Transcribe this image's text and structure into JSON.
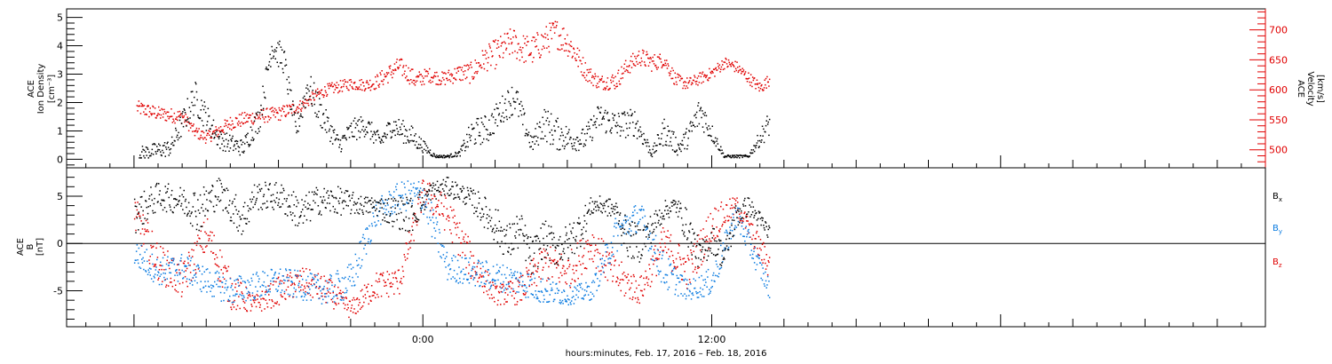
{
  "chart_data": [
    {
      "type": "scatter",
      "title": "",
      "ylabel_lines": [
        "ACE",
        "Ion Density"
      ],
      "ylabel_unit": "[cm⁻³]",
      "ylim": [
        -0.3,
        5.3
      ],
      "y_ticks": [
        "0",
        "1",
        "2",
        "3",
        "4",
        "5"
      ],
      "y2label_lines": [
        "ACE",
        "Velocity"
      ],
      "y2label_unit": "[km/s]",
      "y2lim": [
        470,
        735
      ],
      "y2_ticks": [
        "500",
        "550",
        "600",
        "650",
        "700"
      ],
      "series": [
        {
          "color": "#000000",
          "axis": "left",
          "x": [
            -11.8,
            -10.5,
            -9.5,
            -8.5,
            -7.5,
            -6.8,
            -6.3,
            -5.8,
            -5.3,
            -4.8,
            -4.2,
            -3.5,
            -3.0,
            -2.4,
            -1.8,
            -1.3,
            -0.5,
            0.5,
            1.0,
            1.5,
            2.0,
            2.7,
            3.3,
            3.8,
            4.5,
            5.0,
            5.5,
            6.2,
            6.7,
            7.3,
            8.0,
            8.8,
            9.5,
            10.0,
            10.6,
            11.0,
            11.5,
            12.5,
            13.5,
            14.4
          ],
          "y": [
            0.2,
            0.4,
            2.2,
            0.7,
            0.4,
            1.5,
            4.0,
            3.5,
            1.0,
            2.6,
            1.5,
            0.5,
            1.0,
            1.2,
            0.6,
            1.2,
            0.8,
            0.1,
            0.1,
            0.2,
            0.9,
            1.1,
            1.8,
            2.2,
            0.5,
            1.3,
            0.9,
            0.7,
            0.7,
            1.5,
            1.2,
            1.3,
            0.2,
            1.0,
            0.4,
            0.8,
            1.7,
            0.1,
            0.1,
            1.3
          ],
          "spread": [
            0.25,
            0.3,
            0.6,
            0.35,
            0.3,
            0.5,
            0.5,
            0.5,
            0.4,
            0.6,
            0.5,
            0.3,
            0.4,
            0.4,
            0.3,
            0.4,
            0.4,
            0.05,
            0.05,
            0.1,
            0.5,
            0.5,
            0.5,
            0.6,
            0.3,
            0.6,
            0.6,
            0.4,
            0.4,
            0.5,
            0.5,
            0.5,
            0.15,
            0.5,
            0.3,
            0.4,
            0.6,
            0.05,
            0.05,
            0.5
          ]
        },
        {
          "color": "#e00000",
          "axis": "right",
          "x": [
            -11.9,
            -11.0,
            -10.0,
            -9.5,
            -9.0,
            -8.0,
            -7.0,
            -6.0,
            -5.0,
            -4.5,
            -4.0,
            -3.0,
            -2.4,
            -2.0,
            -1.5,
            -1.0,
            -0.3,
            0.2,
            0.8,
            1.5,
            2.0,
            2.5,
            3.0,
            3.7,
            4.0,
            4.5,
            5.0,
            5.5,
            6.0,
            6.8,
            7.3,
            8.0,
            8.5,
            9.0,
            9.5,
            10.0,
            10.5,
            11.0,
            12.0,
            12.5,
            13.0,
            13.5,
            14.0,
            14.4
          ],
          "y": [
            570,
            560,
            555,
            530,
            520,
            545,
            555,
            560,
            575,
            590,
            600,
            610,
            608,
            612,
            625,
            640,
            615,
            625,
            618,
            628,
            628,
            650,
            660,
            680,
            670,
            665,
            680,
            695,
            680,
            628,
            612,
            615,
            640,
            655,
            645,
            650,
            615,
            610,
            628,
            645,
            638,
            620,
            603,
            618
          ],
          "spread": [
            12,
            12,
            12,
            10,
            10,
            12,
            12,
            12,
            10,
            10,
            10,
            10,
            10,
            12,
            15,
            15,
            15,
            12,
            12,
            15,
            18,
            20,
            25,
            25,
            25,
            25,
            25,
            25,
            25,
            15,
            12,
            15,
            15,
            15,
            15,
            12,
            12,
            10,
            10,
            10,
            10,
            10,
            10,
            10
          ]
        }
      ]
    },
    {
      "type": "scatter",
      "title": "",
      "ylabel_lines": [
        "ACE",
        "B"
      ],
      "ylabel_unit": "[nT]",
      "ylim": [
        -8.8,
        8.0
      ],
      "y_ticks": [
        "-5",
        "0",
        "5"
      ],
      "zero_line": true,
      "legend_position": "right",
      "series": [
        {
          "name": "B",
          "subscript": "x",
          "color": "#000000",
          "x": [
            -12.0,
            -11.0,
            -10.0,
            -9.3,
            -8.5,
            -7.5,
            -7.0,
            -6.0,
            -5.0,
            -4.5,
            -3.5,
            -2.5,
            -2.0,
            -1.5,
            -0.5,
            0.3,
            1.0,
            1.8,
            2.3,
            3.0,
            3.5,
            4.0,
            4.5,
            5.0,
            5.5,
            6.0,
            6.5,
            7.0,
            7.5,
            8.0,
            8.5,
            9.0,
            10.0,
            10.5,
            11.0,
            11.5,
            12.0,
            12.5,
            13.0,
            13.5,
            14.4
          ],
          "y": [
            3.0,
            5.0,
            4.5,
            3.5,
            5.5,
            2.5,
            5.0,
            5.0,
            3.0,
            4.5,
            4.5,
            4.0,
            4.0,
            3.5,
            3.0,
            5.5,
            6.0,
            5.0,
            4.0,
            2.0,
            0.0,
            1.5,
            -1.5,
            0.5,
            -0.5,
            0.0,
            1.5,
            4.0,
            4.0,
            3.5,
            0.5,
            0.0,
            3.5,
            4.0,
            1.5,
            -1.5,
            0.5,
            -1.5,
            3.0,
            4.0,
            1.0
          ],
          "spread": [
            2.0,
            1.5,
            1.5,
            2.5,
            1.5,
            2.0,
            1.5,
            1.5,
            2.0,
            1.5,
            1.5,
            1.0,
            1.0,
            1.5,
            2.0,
            1.0,
            1.0,
            1.0,
            1.5,
            2.0,
            2.0,
            2.0,
            2.0,
            2.0,
            2.0,
            2.0,
            2.0,
            1.0,
            1.0,
            1.0,
            2.0,
            2.0,
            1.0,
            1.0,
            2.0,
            1.5,
            1.5,
            1.5,
            1.5,
            1.0,
            1.0
          ]
        },
        {
          "name": "B",
          "subscript": "y",
          "color": "#0a7be0",
          "x": [
            -12.0,
            -11.0,
            -10.0,
            -9.0,
            -8.0,
            -7.0,
            -6.0,
            -5.0,
            -4.0,
            -3.0,
            -2.0,
            -1.0,
            0.0,
            1.0,
            2.0,
            3.0,
            4.0,
            5.0,
            6.0,
            7.0,
            8.0,
            9.0,
            10.0,
            11.0,
            12.0,
            13.0,
            14.4
          ],
          "y": [
            -1.0,
            -3.0,
            -2.5,
            -4.0,
            -5.0,
            -4.5,
            -4.0,
            -4.5,
            -5.0,
            -4.0,
            3.0,
            5.0,
            5.0,
            -2.5,
            -3.0,
            -3.5,
            -4.0,
            -5.0,
            -5.5,
            -5.0,
            1.0,
            3.0,
            -3.0,
            -5.0,
            -4.0,
            3.0,
            -5.0
          ],
          "spread": [
            1.5,
            1.5,
            1.5,
            1.5,
            1.5,
            1.5,
            1.5,
            1.5,
            1.5,
            2.0,
            1.5,
            1.5,
            2.0,
            1.5,
            1.5,
            1.5,
            1.5,
            1.5,
            1.0,
            1.0,
            2.0,
            1.5,
            2.0,
            1.0,
            1.5,
            1.5,
            1.0
          ]
        },
        {
          "name": "B",
          "subscript": "z",
          "color": "#e00000",
          "x": [
            -12.0,
            -11.0,
            -10.0,
            -9.0,
            -8.0,
            -7.0,
            -6.0,
            -5.0,
            -4.0,
            -3.0,
            -2.0,
            -1.0,
            0.0,
            1.0,
            2.0,
            3.0,
            4.0,
            5.0,
            6.0,
            7.0,
            8.0,
            9.0,
            10.0,
            11.0,
            12.0,
            13.0,
            14.4
          ],
          "y": [
            3.0,
            -2.0,
            -4.0,
            1.0,
            -5.0,
            -6.5,
            -5.0,
            -4.0,
            -5.0,
            -7.0,
            -4.5,
            -4.0,
            5.5,
            3.0,
            -2.0,
            -5.5,
            -5.0,
            -2.0,
            -3.0,
            0.0,
            -3.5,
            -5.0,
            0.0,
            -3.0,
            2.0,
            4.0,
            -2.5
          ],
          "spread": [
            2.0,
            2.0,
            2.0,
            2.0,
            2.0,
            1.0,
            1.5,
            1.5,
            1.5,
            1.0,
            1.5,
            1.5,
            1.5,
            2.0,
            2.0,
            1.0,
            1.5,
            2.0,
            2.0,
            2.0,
            2.0,
            1.5,
            2.0,
            2.0,
            2.0,
            1.0,
            1.5
          ]
        }
      ]
    }
  ],
  "x_axis": {
    "xlim": [
      -14.8,
      35.0
    ],
    "tick_labels": [
      {
        "x": 0,
        "label": "0:00"
      },
      {
        "x": 12,
        "label": "12:00"
      }
    ],
    "xlabel": "hours:minutes, Feb. 17, 2016 – Feb. 18, 2016"
  },
  "colors": {
    "axis": "#000000",
    "right_axis": "#e00000",
    "by": "#0a7be0"
  }
}
